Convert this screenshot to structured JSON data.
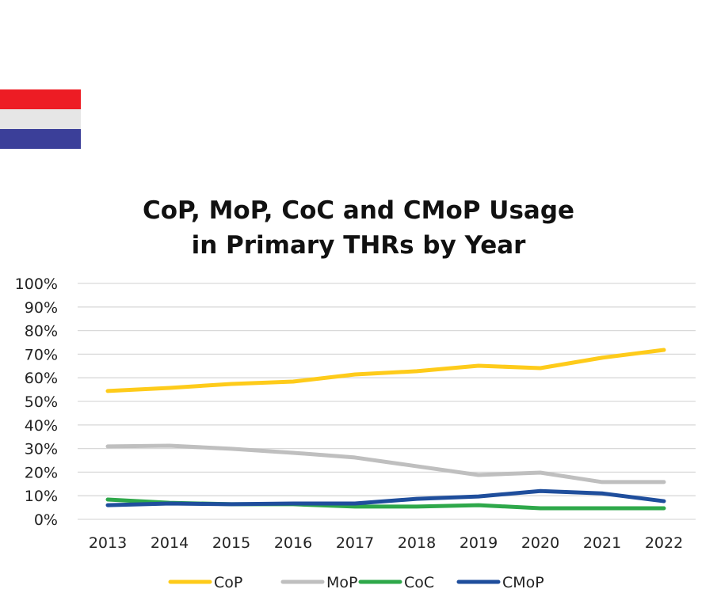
{
  "flag": {
    "colors": [
      "#ed1c24",
      "#e6e6e6",
      "#3b3f99"
    ]
  },
  "chart_data": {
    "type": "line",
    "title_line1": "CoP, MoP, CoC and CMoP Usage",
    "title_line2": "in Primary THRs by Year",
    "x": [
      "2013",
      "2014",
      "2015",
      "2016",
      "2017",
      "2018",
      "2019",
      "2020",
      "2021",
      "2022"
    ],
    "yticks": [
      "0%",
      "10%",
      "20%",
      "30%",
      "40%",
      "50%",
      "60%",
      "70%",
      "80%",
      "90%",
      "100%"
    ],
    "ylim": [
      0,
      100
    ],
    "grid": true,
    "legend_position": "bottom",
    "series": [
      {
        "name": "CoP",
        "color": "#fecb1a",
        "values": [
          54.4,
          55.7,
          57.4,
          58.4,
          61.4,
          62.8,
          65.1,
          64.1,
          68.5,
          71.8
        ]
      },
      {
        "name": "MoP",
        "color": "#bfbfbf",
        "values": [
          30.9,
          31.2,
          29.9,
          28.2,
          26.2,
          22.5,
          18.8,
          19.8,
          15.8,
          15.8
        ]
      },
      {
        "name": "CoC",
        "color": "#2ea84a",
        "values": [
          8.4,
          7.0,
          6.4,
          6.4,
          5.4,
          5.4,
          6.0,
          4.7,
          4.7,
          4.7
        ]
      },
      {
        "name": "CMoP",
        "color": "#1f4e9c",
        "values": [
          6.0,
          6.7,
          6.4,
          6.7,
          6.7,
          8.7,
          9.7,
          12.0,
          11.0,
          7.7
        ]
      }
    ]
  }
}
